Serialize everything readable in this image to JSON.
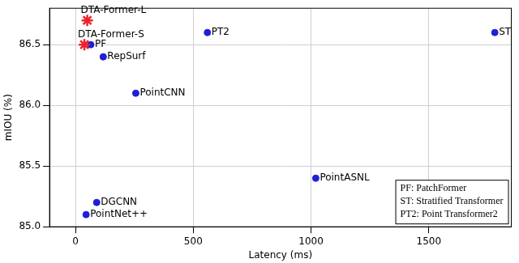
{
  "chart_data": {
    "type": "scatter",
    "x_label": "Latency (ms)",
    "y_label": "mIOU (%)",
    "series": [
      {
        "color": "#e8242b",
        "marker": "star",
        "x": [
          50,
          38
        ],
        "values": [
          86.7,
          86.5
        ],
        "point_labels": [
          "DTA-Former-L",
          "DTA-Former-S"
        ]
      },
      {
        "color": "#1f1fd6",
        "marker": "circle",
        "x": [
          65,
          118,
          256,
          560,
          1780,
          1020,
          90,
          45
        ],
        "values": [
          86.5,
          86.4,
          86.1,
          86.6,
          86.6,
          85.4,
          85.2,
          85.1
        ],
        "point_labels": [
          "PF",
          "RepSurf",
          "PointCNN",
          "PT2",
          "ST",
          "PointASNL",
          "DGCNN",
          "PointNet++"
        ]
      }
    ],
    "annotations": [
      "PF: PatchFormer",
      "ST: Stratified Transformer",
      "PT2: Point Transformer2"
    ],
    "xlim": [
      -110,
      1850
    ],
    "xticks": [
      0,
      500,
      1000,
      1500
    ],
    "ylim": [
      85.0,
      86.8
    ],
    "yticks": [
      {
        "value": 85,
        "label": "85.0"
      },
      85.5,
      {
        "value": 86,
        "label": "86.0"
      },
      86.5
    ],
    "grid": true
  }
}
